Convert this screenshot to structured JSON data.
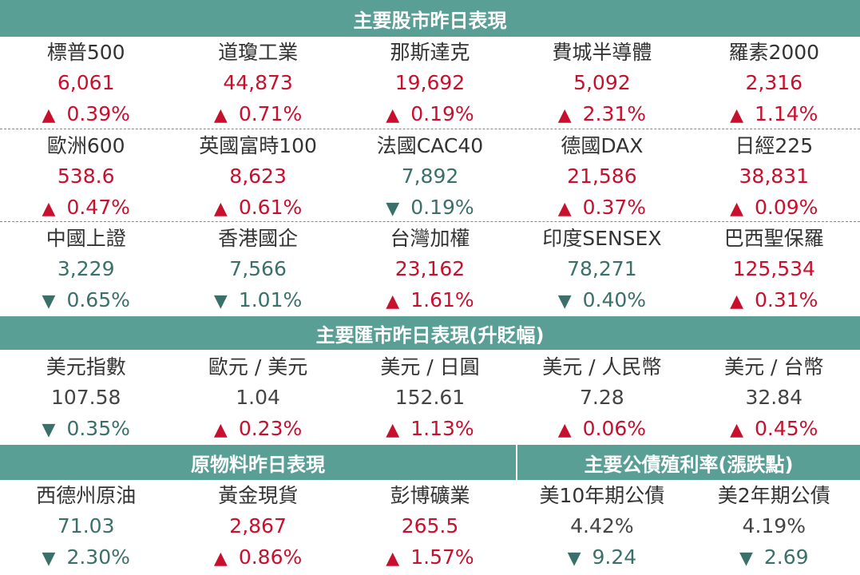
{
  "stocks": {
    "title": "主要股市昨日表現",
    "rows": [
      [
        {
          "name": "標普500",
          "value": "6,061",
          "arrow": "▲",
          "change": "0.39%",
          "dir": "up"
        },
        {
          "name": "道瓊工業",
          "value": "44,873",
          "arrow": "▲",
          "change": "0.71%",
          "dir": "up"
        },
        {
          "name": "那斯達克",
          "value": "19,692",
          "arrow": "▲",
          "change": "0.19%",
          "dir": "up"
        },
        {
          "name": "費城半導體",
          "value": "5,092",
          "arrow": "▲",
          "change": "2.31%",
          "dir": "up"
        },
        {
          "name": "羅素2000",
          "value": "2,316",
          "arrow": "▲",
          "change": "1.14%",
          "dir": "up"
        }
      ],
      [
        {
          "name": "歐洲600",
          "value": "538.6",
          "arrow": "▲",
          "change": "0.47%",
          "dir": "up"
        },
        {
          "name": "英國富時100",
          "value": "8,623",
          "arrow": "▲",
          "change": "0.61%",
          "dir": "up"
        },
        {
          "name": "法國CAC40",
          "value": "7,892",
          "arrow": "▼",
          "change": "0.19%",
          "dir": "down"
        },
        {
          "name": "德國DAX",
          "value": "21,586",
          "arrow": "▲",
          "change": "0.37%",
          "dir": "up"
        },
        {
          "name": "日經225",
          "value": "38,831",
          "arrow": "▲",
          "change": "0.09%",
          "dir": "up"
        }
      ],
      [
        {
          "name": "中國上證",
          "value": "3,229",
          "arrow": "▼",
          "change": "0.65%",
          "dir": "down"
        },
        {
          "name": "香港國企",
          "value": "7,566",
          "arrow": "▼",
          "change": "1.01%",
          "dir": "down"
        },
        {
          "name": "台灣加權",
          "value": "23,162",
          "arrow": "▲",
          "change": "1.61%",
          "dir": "up"
        },
        {
          "name": "印度SENSEX",
          "value": "78,271",
          "arrow": "▼",
          "change": "0.40%",
          "dir": "down"
        },
        {
          "name": "巴西聖保羅",
          "value": "125,534",
          "arrow": "▲",
          "change": "0.31%",
          "dir": "up"
        }
      ]
    ]
  },
  "fx": {
    "title": "主要匯市昨日表現(升貶幅)",
    "items": [
      {
        "name": "美元指數",
        "value": "107.58",
        "arrow": "▼",
        "change": "0.35%",
        "dir": "down"
      },
      {
        "name": "歐元 / 美元",
        "value": "1.04",
        "arrow": "▲",
        "change": "0.23%",
        "dir": "up"
      },
      {
        "name": "美元 / 日圓",
        "value": "152.61",
        "arrow": "▲",
        "change": "1.13%",
        "dir": "up"
      },
      {
        "name": "美元 / 人民幣",
        "value": "7.28",
        "arrow": "▲",
        "change": "0.06%",
        "dir": "up"
      },
      {
        "name": "美元 / 台幣",
        "value": "32.84",
        "arrow": "▲",
        "change": "0.45%",
        "dir": "up"
      }
    ]
  },
  "commodities": {
    "title": "原物料昨日表現",
    "items": [
      {
        "name": "西德州原油",
        "value": "71.03",
        "arrow": "▼",
        "change": "2.30%",
        "dir": "down"
      },
      {
        "name": "黃金現貨",
        "value": "2,867",
        "arrow": "▲",
        "change": "0.86%",
        "dir": "up"
      },
      {
        "name": "彭博礦業",
        "value": "265.5",
        "arrow": "▲",
        "change": "1.57%",
        "dir": "up"
      }
    ]
  },
  "bonds": {
    "title": "主要公債殖利率(漲跌點)",
    "items": [
      {
        "name": "美10年期公債",
        "value": "4.42%",
        "arrow": "▼",
        "change": "9.24",
        "dir": "down"
      },
      {
        "name": "美2年期公債",
        "value": "4.19%",
        "arrow": "▼",
        "change": "2.69",
        "dir": "down"
      }
    ]
  },
  "colors": {
    "band": "#5a9f96",
    "up": "#c8102e",
    "down": "#3a7069",
    "neutral": "#444444"
  }
}
